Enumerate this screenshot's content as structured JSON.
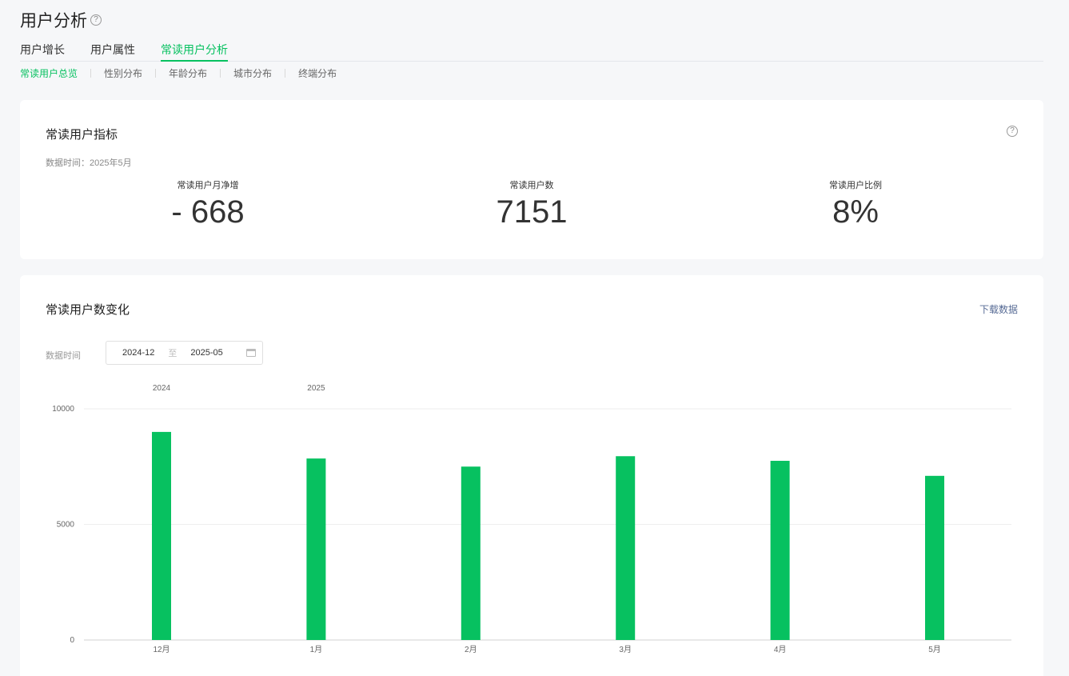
{
  "page": {
    "title": "用户分析"
  },
  "tabs": [
    {
      "label": "用户增长",
      "active": false
    },
    {
      "label": "用户属性",
      "active": false
    },
    {
      "label": "常读用户分析",
      "active": true
    }
  ],
  "subtabs": [
    {
      "label": "常读用户总览",
      "active": true
    },
    {
      "label": "性别分布",
      "active": false
    },
    {
      "label": "年龄分布",
      "active": false
    },
    {
      "label": "城市分布",
      "active": false
    },
    {
      "label": "终端分布",
      "active": false
    }
  ],
  "metrics_card": {
    "title": "常读用户指标",
    "data_time": "数据时间：2025年5月",
    "metrics": [
      {
        "label": "常读用户月净增",
        "value": "- 668"
      },
      {
        "label": "常读用户数",
        "value": "7151"
      },
      {
        "label": "常读用户比例",
        "value": "8%"
      }
    ]
  },
  "trend_card": {
    "title": "常读用户数变化",
    "download_label": "下载数据",
    "date_label": "数据时间",
    "date_start": "2024-12",
    "date_sep": "至",
    "date_end": "2025-05"
  },
  "chart_data": {
    "type": "bar",
    "categories": [
      "12月",
      "1月",
      "2月",
      "3月",
      "4月",
      "5月"
    ],
    "year_labels": [
      {
        "label": "2024",
        "category_index": 0
      },
      {
        "label": "2025",
        "category_index": 1
      }
    ],
    "values": [
      9000,
      7850,
      7500,
      7950,
      7750,
      7100
    ],
    "y_ticks": [
      0,
      5000,
      10000
    ],
    "ylim": [
      0,
      10000
    ],
    "bar_color": "#07c160"
  },
  "colors": {
    "accent": "#07c160",
    "link": "#576b95"
  }
}
